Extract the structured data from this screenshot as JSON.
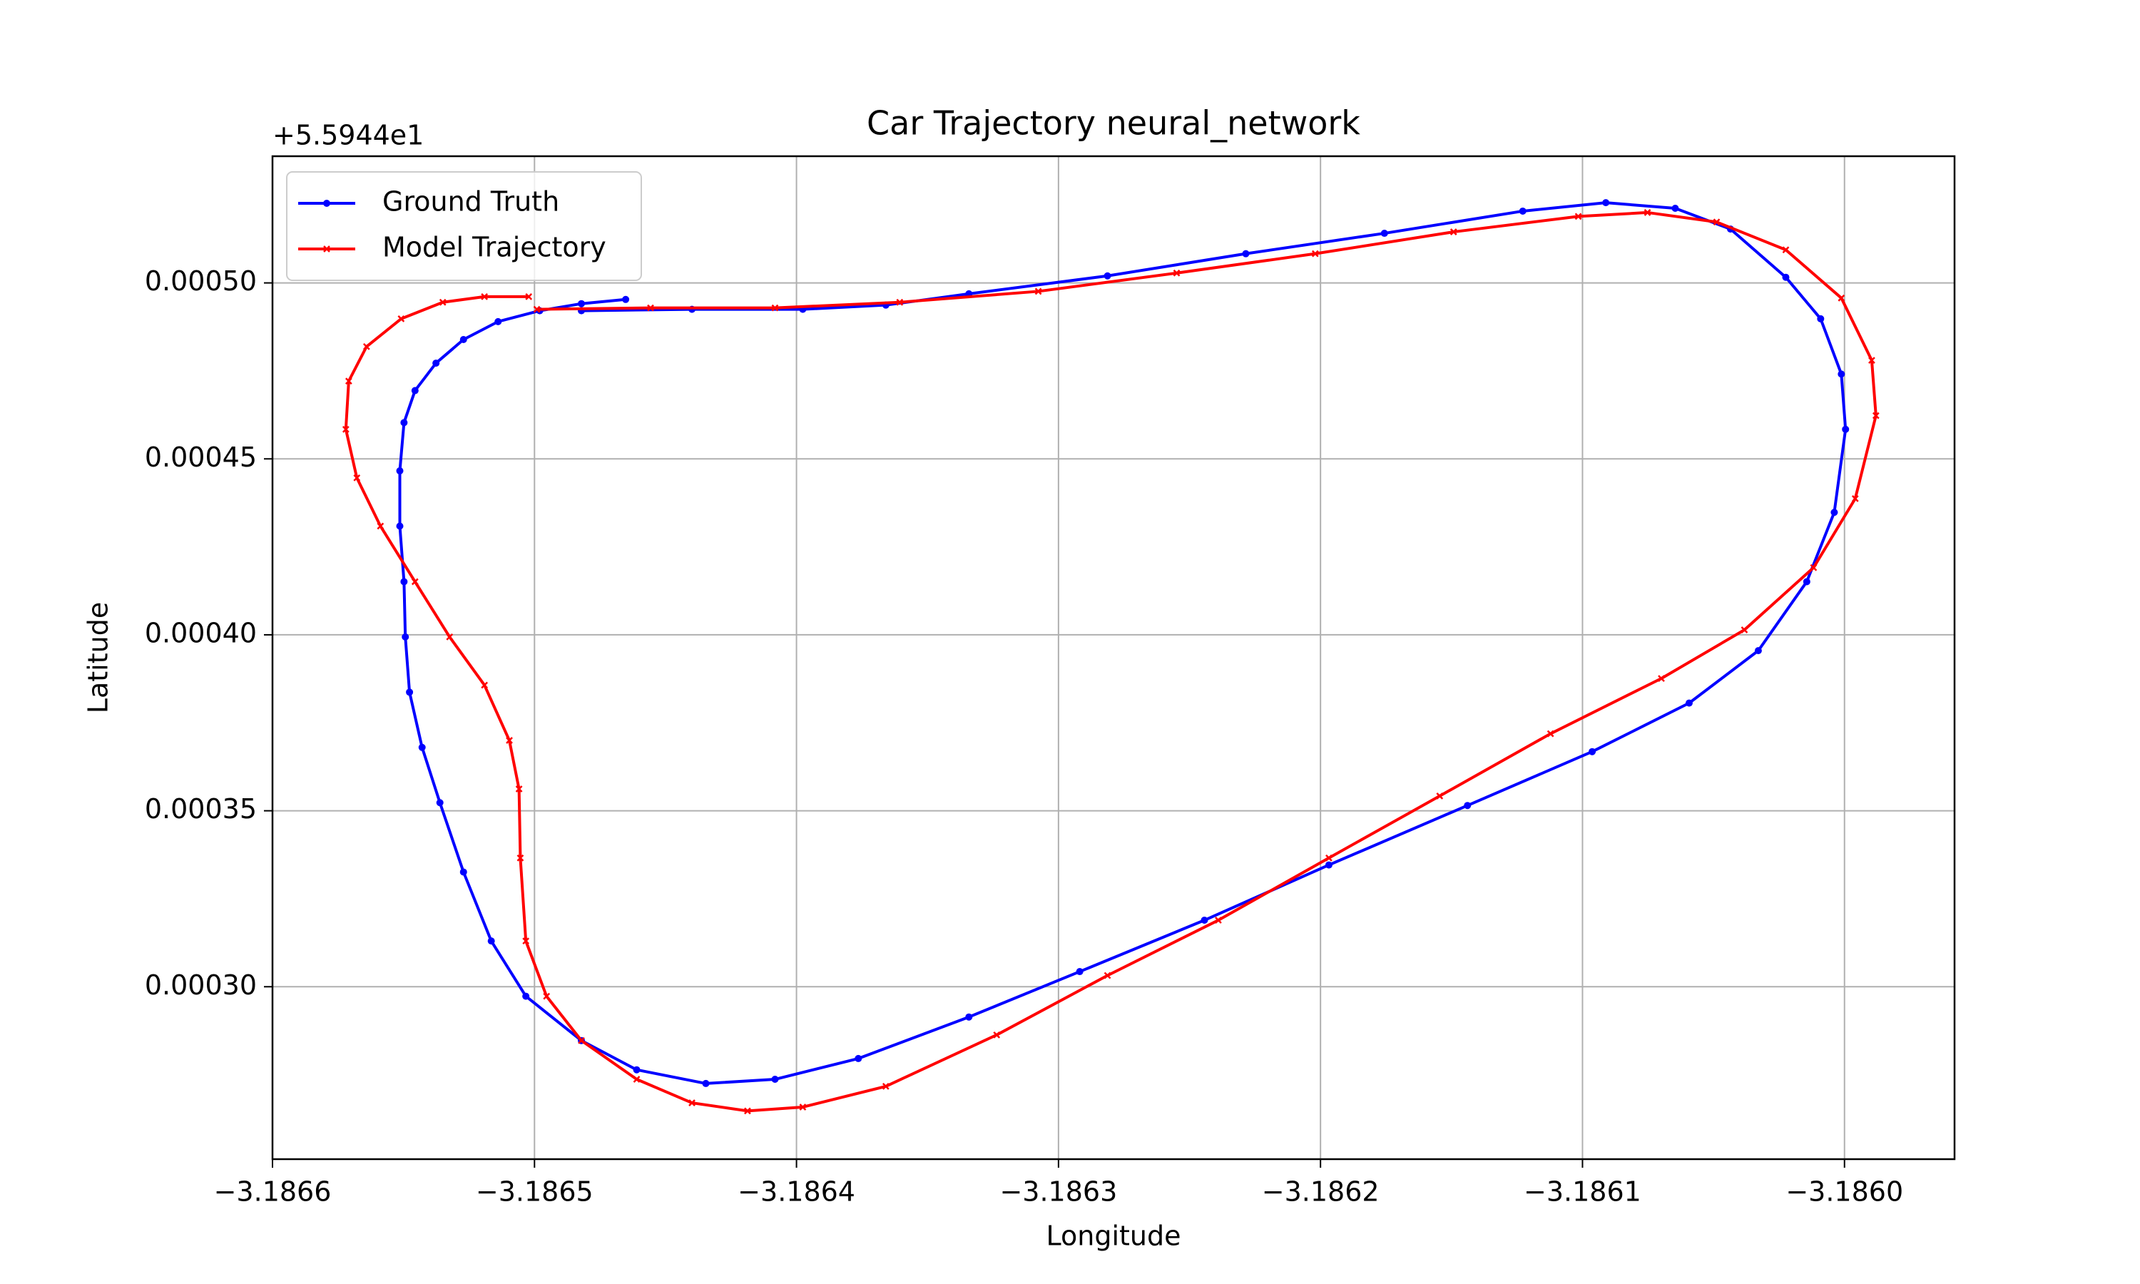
{
  "chart_data": {
    "type": "line",
    "title": "Car Trajectory neural_network",
    "x_label": "Longitude",
    "y_label": "Latitude",
    "y_offset_label": "+5.5944e1",
    "xlim": [
      -3.1866,
      -3.185958
    ],
    "ylim": [
      0.000251,
      0.000536
    ],
    "xticks": [
      {
        "value": -3.1866,
        "label": "−3.1866"
      },
      {
        "value": -3.1865,
        "label": "−3.1865"
      },
      {
        "value": -3.1864,
        "label": "−3.1864"
      },
      {
        "value": -3.1863,
        "label": "−3.1863"
      },
      {
        "value": -3.1862,
        "label": "−3.1862"
      },
      {
        "value": -3.1861,
        "label": "−3.1861"
      },
      {
        "value": -3.186,
        "label": "−3.1860"
      }
    ],
    "yticks": [
      {
        "value": 0.0003,
        "label": "0.00030"
      },
      {
        "value": 0.00035,
        "label": "0.00035"
      },
      {
        "value": 0.0004,
        "label": "0.00040"
      },
      {
        "value": 0.00045,
        "label": "0.00045"
      },
      {
        "value": 0.0005,
        "label": "0.00050"
      }
    ],
    "grid": true,
    "legend": "upper left",
    "series": [
      {
        "name": "Ground Truth",
        "color": "#0000ff",
        "marker": "o",
        "x": [
          -3.1864652,
          -3.1864821,
          -3.186498,
          -3.1865139,
          -3.1865271,
          -3.1865376,
          -3.1865456,
          -3.1865498,
          -3.1865514,
          -3.1865514,
          -3.1865498,
          -3.1865493,
          -3.1865477,
          -3.1865429,
          -3.1865361,
          -3.1865271,
          -3.1865165,
          -3.1865033,
          -3.1864821,
          -3.186461,
          -3.1864346,
          -3.1864082,
          -3.1863764,
          -3.1863342,
          -3.1862919,
          -3.1862443,
          -3.1861968,
          -3.1861439,
          -3.1860963,
          -3.1860593,
          -3.1860329,
          -3.1860144,
          -3.1860039,
          -3.1859996,
          -3.1860012,
          -3.1860091,
          -3.1860224,
          -3.1860435,
          -3.1860646,
          -3.1860911,
          -3.1861228,
          -3.1861756,
          -3.1862285,
          -3.1862813,
          -3.1863342,
          -3.1863659,
          -3.1863976,
          -3.1864399,
          -3.1864821
        ],
        "values": [
          0.0004953,
          0.0004941,
          0.0004921,
          0.000489,
          0.0004839,
          0.0004772,
          0.0004694,
          0.0004603,
          0.0004466,
          0.0004309,
          0.0004151,
          0.0003994,
          0.0003837,
          0.000368,
          0.0003523,
          0.0003326,
          0.000313,
          0.0002973,
          0.0002847,
          0.0002764,
          0.0002725,
          0.0002737,
          0.0002796,
          0.0002914,
          0.0003043,
          0.0003189,
          0.0003346,
          0.0003515,
          0.0003668,
          0.0003806,
          0.0003955,
          0.0004151,
          0.0004348,
          0.0004584,
          0.0004741,
          0.0004898,
          0.0005016,
          0.0005153,
          0.0005212,
          0.0005228,
          0.0005204,
          0.0005141,
          0.0005083,
          0.000502,
          0.0004969,
          0.0004937,
          0.0004925,
          0.0004925,
          0.0004921
        ]
      },
      {
        "name": "Model Trajectory",
        "color": "#ff0000",
        "marker": "x",
        "x": [
          -3.1865022,
          -3.1865191,
          -3.186535,
          -3.1865509,
          -3.1865641,
          -3.1865709,
          -3.186572,
          -3.1865678,
          -3.1865588,
          -3.1865456,
          -3.1865324,
          -3.1865191,
          -3.1865096,
          -3.1865059,
          -3.1865054,
          -3.1865033,
          -3.1864954,
          -3.1864821,
          -3.186461,
          -3.1864399,
          -3.1864187,
          -3.1863976,
          -3.1863659,
          -3.1863236,
          -3.1862813,
          -3.186239,
          -3.1861968,
          -3.1861545,
          -3.1861122,
          -3.1860699,
          -3.1860382,
          -3.1860118,
          -3.1859959,
          -3.185988,
          -3.1859896,
          -3.1860012,
          -3.1860224,
          -3.1860488,
          -3.1860752,
          -3.1861016,
          -3.1861492,
          -3.186202,
          -3.1862549,
          -3.1863077,
          -3.1863606,
          -3.1864082,
          -3.1864557,
          -3.1864991
        ],
        "values": [
          0.0004961,
          0.0004961,
          0.0004945,
          0.0004898,
          0.0004819,
          0.0004721,
          0.0004584,
          0.0004446,
          0.0004309,
          0.0004151,
          0.0003994,
          0.0003857,
          0.00037,
          0.0003562,
          0.0003366,
          0.000313,
          0.0002973,
          0.0002847,
          0.0002737,
          0.000267,
          0.0002647,
          0.0002658,
          0.0002717,
          0.0002863,
          0.0003032,
          0.0003189,
          0.0003366,
          0.0003542,
          0.0003719,
          0.0003876,
          0.0004014,
          0.0004191,
          0.0004387,
          0.0004623,
          0.000478,
          0.0004957,
          0.0005094,
          0.0005173,
          0.00052,
          0.0005189,
          0.0005145,
          0.0005083,
          0.0005028,
          0.0004976,
          0.0004945,
          0.0004929,
          0.0004929,
          0.0004925
        ]
      }
    ]
  }
}
